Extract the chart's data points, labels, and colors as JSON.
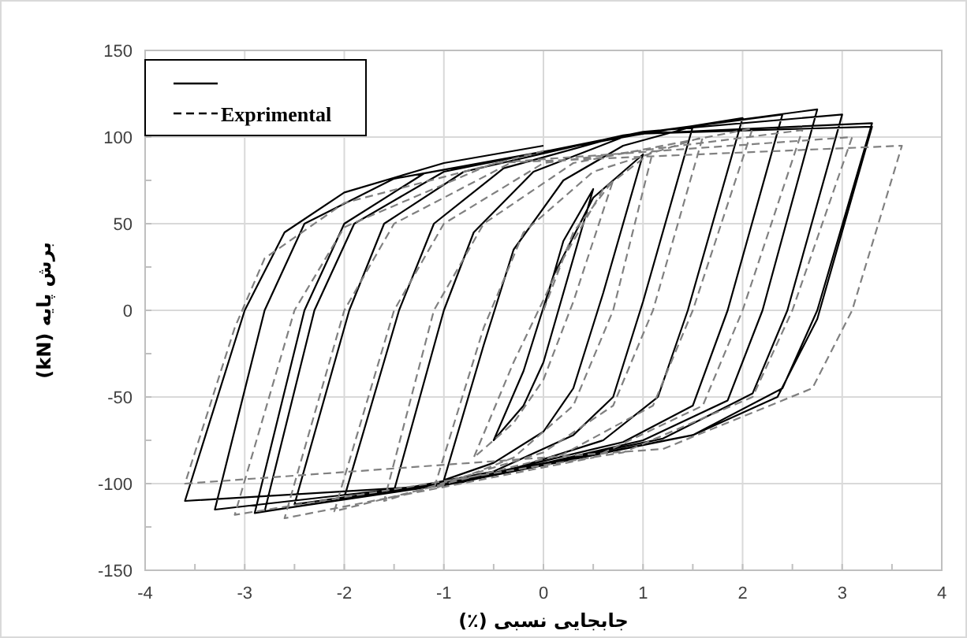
{
  "chart_data": {
    "type": "line",
    "xlabel": "جابجایی نسبی (٪)",
    "ylabel": "برش پایه (kN)",
    "xlim": [
      -4,
      4
    ],
    "ylim": [
      -150,
      150
    ],
    "xticks": [
      -4,
      {
        "value": -3.5,
        "label": null
      },
      -3,
      {
        "value": -2.5,
        "label": null
      },
      -2,
      {
        "value": -1.5,
        "label": null
      },
      -1,
      {
        "value": -0.5,
        "label": null
      },
      0,
      {
        "value": 0.5,
        "label": null
      },
      1,
      {
        "value": 1.5,
        "label": null
      },
      2,
      {
        "value": 2.5,
        "label": null
      },
      3,
      {
        "value": 3.5,
        "label": null
      },
      4
    ],
    "yticks": [
      -150,
      {
        "value": -125,
        "label": null
      },
      -100,
      {
        "value": -75,
        "label": null
      },
      -50,
      {
        "value": -25,
        "label": null
      },
      0,
      {
        "value": 25,
        "label": null
      },
      50,
      {
        "value": 75,
        "label": null
      },
      100,
      {
        "value": 125,
        "label": null
      },
      150
    ],
    "grid": true,
    "legend": "top left",
    "series": [
      {
        "color": "#000000",
        "line_style": "solid",
        "x": [
          0,
          0.2,
          0.5,
          0.2,
          0,
          -0.2,
          -0.5,
          -0.2,
          0.1,
          0.5,
          1.0,
          0.6,
          0.3,
          0,
          -0.5,
          -1.0,
          -0.6,
          -0.3,
          0.2,
          0.8,
          1.5,
          1.0,
          0.7,
          0.3,
          -0.5,
          -1.5,
          -1.0,
          -0.7,
          -0.1,
          0.8,
          2.0,
          1.45,
          1.15,
          0.6,
          -0.5,
          -2.0,
          -1.45,
          -1.1,
          -0.4,
          0.8,
          2.4,
          1.85,
          1.5,
          0.8,
          -0.8,
          -2.5,
          -1.95,
          -1.6,
          -0.8,
          0.8,
          2.75,
          2.2,
          1.85,
          1.0,
          -0.8,
          -2.8,
          -2.3,
          -1.9,
          -1.0,
          1.0,
          3.0,
          2.45,
          2.1,
          1.2,
          -1.0,
          -2.9,
          -2.4,
          -2.0,
          -1.2,
          1.0,
          3.3,
          2.75,
          2.4,
          1.5,
          -1.0,
          -3.3,
          -2.8,
          -2.4,
          -1.5,
          1.0,
          3.3,
          2.75,
          2.35,
          1.5,
          -1.0,
          -3.6,
          -3.0,
          -2.6,
          -2.0,
          -1.0,
          0
        ],
        "values": [
          0,
          40,
          70,
          10,
          -30,
          -55,
          -75,
          -35,
          20,
          65,
          90,
          10,
          -45,
          -70,
          -88,
          -98,
          -20,
          35,
          75,
          95,
          106,
          5,
          -50,
          -72,
          -93,
          -104,
          0,
          45,
          80,
          100,
          111,
          0,
          -50,
          -75,
          -95,
          -108,
          0,
          50,
          82,
          101,
          113,
          0,
          -55,
          -76,
          -98,
          -112,
          0,
          50,
          80,
          101,
          116,
          0,
          -52,
          -75,
          -99,
          -116,
          0,
          50,
          80,
          103,
          113,
          0,
          -48,
          -74,
          -100,
          -117,
          0,
          50,
          79,
          102,
          108,
          0,
          -45,
          -72,
          -100,
          -115,
          0,
          50,
          76,
          102,
          106,
          -5,
          -50,
          -72,
          -101,
          -110,
          0,
          45,
          68,
          85,
          95
        ]
      },
      {
        "name": "Exprimental",
        "color": "#808080",
        "line_style": "dashed",
        "x": [
          0,
          0.3,
          0.7,
          0.3,
          0,
          -0.3,
          -0.7,
          -0.3,
          0.2,
          0.6,
          1.1,
          0.7,
          0.3,
          -0.3,
          -1.1,
          -0.6,
          -0.2,
          0.5,
          1.6,
          1.1,
          0.7,
          0,
          -1.6,
          -1.1,
          -0.6,
          0.3,
          2.1,
          1.5,
          1.1,
          0.2,
          -2.1,
          -1.5,
          -1.0,
          0,
          2.6,
          2.0,
          1.6,
          0.5,
          -2.6,
          -2.0,
          -1.5,
          -0.3,
          3.1,
          2.5,
          2.1,
          0.8,
          -3.1,
          -2.5,
          -2.0,
          -0.5,
          3.6,
          3.1,
          2.7,
          1.2,
          -3.6,
          -3.1,
          -2.8,
          -2.0,
          0
        ],
        "values": [
          0,
          45,
          75,
          5,
          -40,
          -65,
          -85,
          -30,
          30,
          70,
          92,
          0,
          -55,
          -85,
          -103,
          -10,
          45,
          80,
          100,
          0,
          -55,
          -82,
          -110,
          0,
          50,
          85,
          105,
          0,
          -55,
          -83,
          -116,
          0,
          50,
          85,
          104,
          0,
          -55,
          -85,
          -120,
          0,
          50,
          86,
          100,
          0,
          -50,
          -82,
          -118,
          0,
          48,
          85,
          95,
          0,
          -45,
          -80,
          -100,
          -10,
          30,
          62,
          92
        ]
      }
    ]
  }
}
